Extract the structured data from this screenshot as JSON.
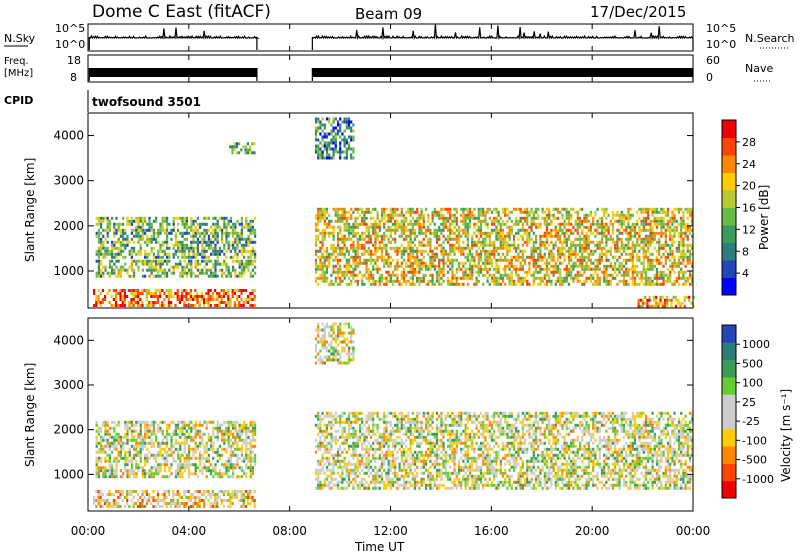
{
  "header": {
    "station": "Dome C East (fitACF)",
    "beam": "Beam 09",
    "date": "17/Dec/2015"
  },
  "chart_data": {
    "type": "heatmap",
    "x_axis": {
      "label": "Time UT",
      "range": [
        "00:00",
        "24:00"
      ],
      "tick_labels": [
        "00:00",
        "04:00",
        "08:00",
        "12:00",
        "16:00",
        "20:00",
        "00:00"
      ]
    },
    "data_gap_ut_hours": [
      6.7,
      8.9
    ],
    "panels": {
      "sky_search": {
        "left_label": "N.Sky",
        "left_ticks": [
          "10^5",
          "10^0"
        ],
        "right_label": "N.Search",
        "right_ticks": [
          "10^5",
          "10^0"
        ]
      },
      "freq_nave": {
        "left_label_line1": "Freq.",
        "left_label_line2": "[MHz]",
        "left_ticks": [
          "18",
          "8"
        ],
        "right_label": "Nave",
        "right_ticks": [
          "60",
          "0"
        ]
      },
      "cpid": {
        "label": "CPID",
        "program": "twofsound 3501"
      },
      "power": {
        "ylabel": "Slant Range [km]",
        "yticks": [
          "4000",
          "3000",
          "2000",
          "1000"
        ],
        "ylim_km": [
          180,
          4500
        ],
        "colorbar_label": "Power [dB]",
        "colorbar_ticks": [
          "28",
          "24",
          "20",
          "16",
          "12",
          "8",
          "4"
        ],
        "colors": [
          "#0000ff",
          "#2246b8",
          "#2e7d7d",
          "#3c9a5a",
          "#66bb44",
          "#b8c830",
          "#ffcc00",
          "#ff8800",
          "#ff4400",
          "#ee0000"
        ],
        "echo_regions": [
          {
            "t0": 0.2,
            "t1": 6.6,
            "r0": 250,
            "r1": 600,
            "level": 0.8
          },
          {
            "t0": 0.3,
            "t1": 6.6,
            "r0": 900,
            "r1": 1250,
            "level": 0.45
          },
          {
            "t0": 0.3,
            "t1": 6.6,
            "r0": 1300,
            "r1": 2200,
            "level": 0.4
          },
          {
            "t0": 5.6,
            "t1": 6.6,
            "r0": 3600,
            "r1": 3850,
            "level": 0.4
          },
          {
            "t0": 9.0,
            "t1": 24.0,
            "r0": 700,
            "r1": 2400,
            "level": 0.6
          },
          {
            "t0": 9.0,
            "t1": 10.5,
            "r0": 3500,
            "r1": 4400,
            "level": 0.3
          },
          {
            "t0": 21.8,
            "t1": 24.0,
            "r0": 250,
            "r1": 450,
            "level": 0.75
          }
        ]
      },
      "velocity": {
        "ylabel": "Slant Range [km]",
        "yticks": [
          "4000",
          "3000",
          "2000",
          "1000"
        ],
        "ylim_km": [
          180,
          4500
        ],
        "colorbar_label": "Velocity [m s⁻¹]",
        "colorbar_ticks": [
          "1000",
          "500",
          "100",
          "25",
          "-25",
          "-100",
          "-500",
          "-1000"
        ],
        "colors": [
          "#ee0000",
          "#ff4400",
          "#ff8800",
          "#ffcc00",
          "#cccccc",
          "#cccccc",
          "#66cc33",
          "#3c9a5a",
          "#2e7d7d",
          "#2246b8"
        ],
        "echo_regions": [
          {
            "t0": 0.2,
            "t1": 6.6,
            "r0": 250,
            "r1": 650,
            "level": 0.4
          },
          {
            "t0": 0.3,
            "t1": 6.6,
            "r0": 950,
            "r1": 1250,
            "level": 0.5
          },
          {
            "t0": 0.3,
            "t1": 6.6,
            "r0": 1300,
            "r1": 2200,
            "level": 0.5
          },
          {
            "t0": 9.0,
            "t1": 24.0,
            "r0": 700,
            "r1": 2400,
            "level": 0.5
          },
          {
            "t0": 9.0,
            "t1": 10.5,
            "r0": 3500,
            "r1": 4400,
            "level": 0.5
          }
        ]
      }
    }
  }
}
